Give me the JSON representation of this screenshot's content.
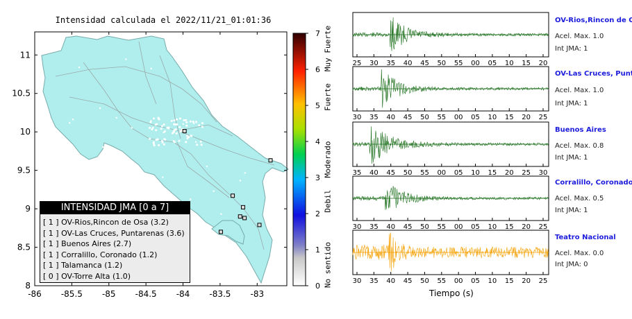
{
  "map": {
    "title": "Intensidad calculada el 2022/11/21_01:01:36",
    "lon_ticks": [
      "-86",
      "-85.5",
      "-85",
      "-84.5",
      "-84",
      "-83.5",
      "-83"
    ],
    "lat_ticks": [
      "11",
      "10.5",
      "10",
      "9.5",
      "9",
      "8.5",
      "8"
    ],
    "land_color": "#b0eeee",
    "stations": [
      {
        "name": "OV-Rios,Rincon de Osa",
        "lon": -83.49,
        "lat": 8.7
      },
      {
        "name": "OV-Las Cruces, Puntarenas",
        "lon": -82.97,
        "lat": 8.79
      },
      {
        "name": "Buenos Aires",
        "lon": -83.33,
        "lat": 9.17
      },
      {
        "name": "Corralillo, Coronado",
        "lon": -83.98,
        "lat": 10.01
      },
      {
        "name": "Talamanca",
        "lon": -82.82,
        "lat": 9.63
      },
      {
        "name": "OV-Torre Alta",
        "lon": -83.23,
        "lat": 8.9
      },
      {
        "name": "",
        "lon": -83.19,
        "lat": 9.02
      },
      {
        "name": "",
        "lon": -83.17,
        "lat": 8.88
      }
    ]
  },
  "colorbar": {
    "ticks": [
      "0",
      "1",
      "2",
      "3",
      "4",
      "5",
      "6",
      "7"
    ],
    "labels": [
      "No sentido",
      "Debil",
      "Moderado",
      "Fuerte",
      "Muy Fuerte"
    ]
  },
  "legend": {
    "title": "INTENSIDAD JMA [0 a 7]",
    "rows": [
      "[ 1 ]  OV-Rios,Rincon de Osa (3.2)",
      "[ 1 ]  OV-Las Cruces, Puntarenas (3.6)",
      "[ 1 ]  Buenos Aires (2.7)",
      "[ 1 ]  Corralillo, Coronado (1.2)",
      "[ 1 ]  Talamanca (1.2)",
      "[ 0 ]  OV-Torre Alta (1.0)"
    ]
  },
  "waveforms": {
    "xlabel": "Tiempo (s)",
    "panels": [
      {
        "name": "OV-Rios,Rincon de Osa",
        "acel": "Acel. Max. 1.0",
        "jma": "Int JMA: 1",
        "color": "#1a6e1a",
        "ticks": [
          "25",
          "30",
          "35",
          "40",
          "45",
          "50",
          "55",
          "00",
          "05",
          "10",
          "15",
          "20"
        ],
        "burst": 0.15
      },
      {
        "name": "OV-Las Cruces, Puntarenas",
        "acel": "Acel. Max. 1.0",
        "jma": "Int JMA: 1",
        "color": "#1a6e1a",
        "ticks": [
          "30",
          "35",
          "40",
          "45",
          "50",
          "55",
          "00",
          "05",
          "10",
          "15",
          "20",
          "25"
        ],
        "burst": 0.11
      },
      {
        "name": "Buenos Aires",
        "acel": "Acel. Max. 0.8",
        "jma": "Int JMA: 1",
        "color": "#1a6e1a",
        "ticks": [
          "35",
          "40",
          "45",
          "50",
          "55",
          "00",
          "05",
          "10",
          "15",
          "20",
          "25",
          "30"
        ],
        "burst": 0.05
      },
      {
        "name": "Corralillo, Coronado",
        "acel": "Acel. Max. 0.5",
        "jma": "Int JMA: 1",
        "color": "#1a6e1a",
        "ticks": [
          "30",
          "35",
          "40",
          "45",
          "50",
          "55",
          "00",
          "05",
          "10",
          "15",
          "20",
          "25"
        ],
        "burst": 0.13
      },
      {
        "name": "Teatro Nacional",
        "acel": "Acel. Max. 0.0",
        "jma": "Int JMA: 0",
        "color": "#f5a000",
        "ticks": [
          "30",
          "35",
          "40",
          "45",
          "50",
          "55",
          "00",
          "05",
          "10",
          "15",
          "20",
          "25"
        ],
        "burst": 0.15
      }
    ]
  },
  "chart_data": [
    {
      "type": "scatter",
      "title": "Intensidad calculada el 2022/11/21_01:01:36",
      "xlim": [
        -86,
        -82.6
      ],
      "ylim": [
        8,
        11.3
      ],
      "colorbar_range": [
        0,
        7
      ],
      "legend_title": "INTENSIDAD JMA [0 a 7]",
      "series": [
        {
          "name": "OV-Rios,Rincon de Osa",
          "jma_class": 1,
          "intensity": 3.2
        },
        {
          "name": "OV-Las Cruces, Puntarenas",
          "jma_class": 1,
          "intensity": 3.6
        },
        {
          "name": "Buenos Aires",
          "jma_class": 1,
          "intensity": 2.7
        },
        {
          "name": "Corralillo, Coronado",
          "jma_class": 1,
          "intensity": 1.2
        },
        {
          "name": "Talamanca",
          "jma_class": 1,
          "intensity": 1.2
        },
        {
          "name": "OV-Torre Alta",
          "jma_class": 0,
          "intensity": 1.0
        }
      ]
    },
    {
      "type": "line",
      "xlabel": "Tiempo (s)",
      "series": [
        {
          "name": "OV-Rios,Rincon de Osa",
          "peak_accel": 1.0,
          "jma": 1
        },
        {
          "name": "OV-Las Cruces, Puntarenas",
          "peak_accel": 1.0,
          "jma": 1
        },
        {
          "name": "Buenos Aires",
          "peak_accel": 0.8,
          "jma": 1
        },
        {
          "name": "Corralillo, Coronado",
          "peak_accel": 0.5,
          "jma": 1
        },
        {
          "name": "Teatro Nacional",
          "peak_accel": 0.0,
          "jma": 0
        }
      ]
    }
  ]
}
